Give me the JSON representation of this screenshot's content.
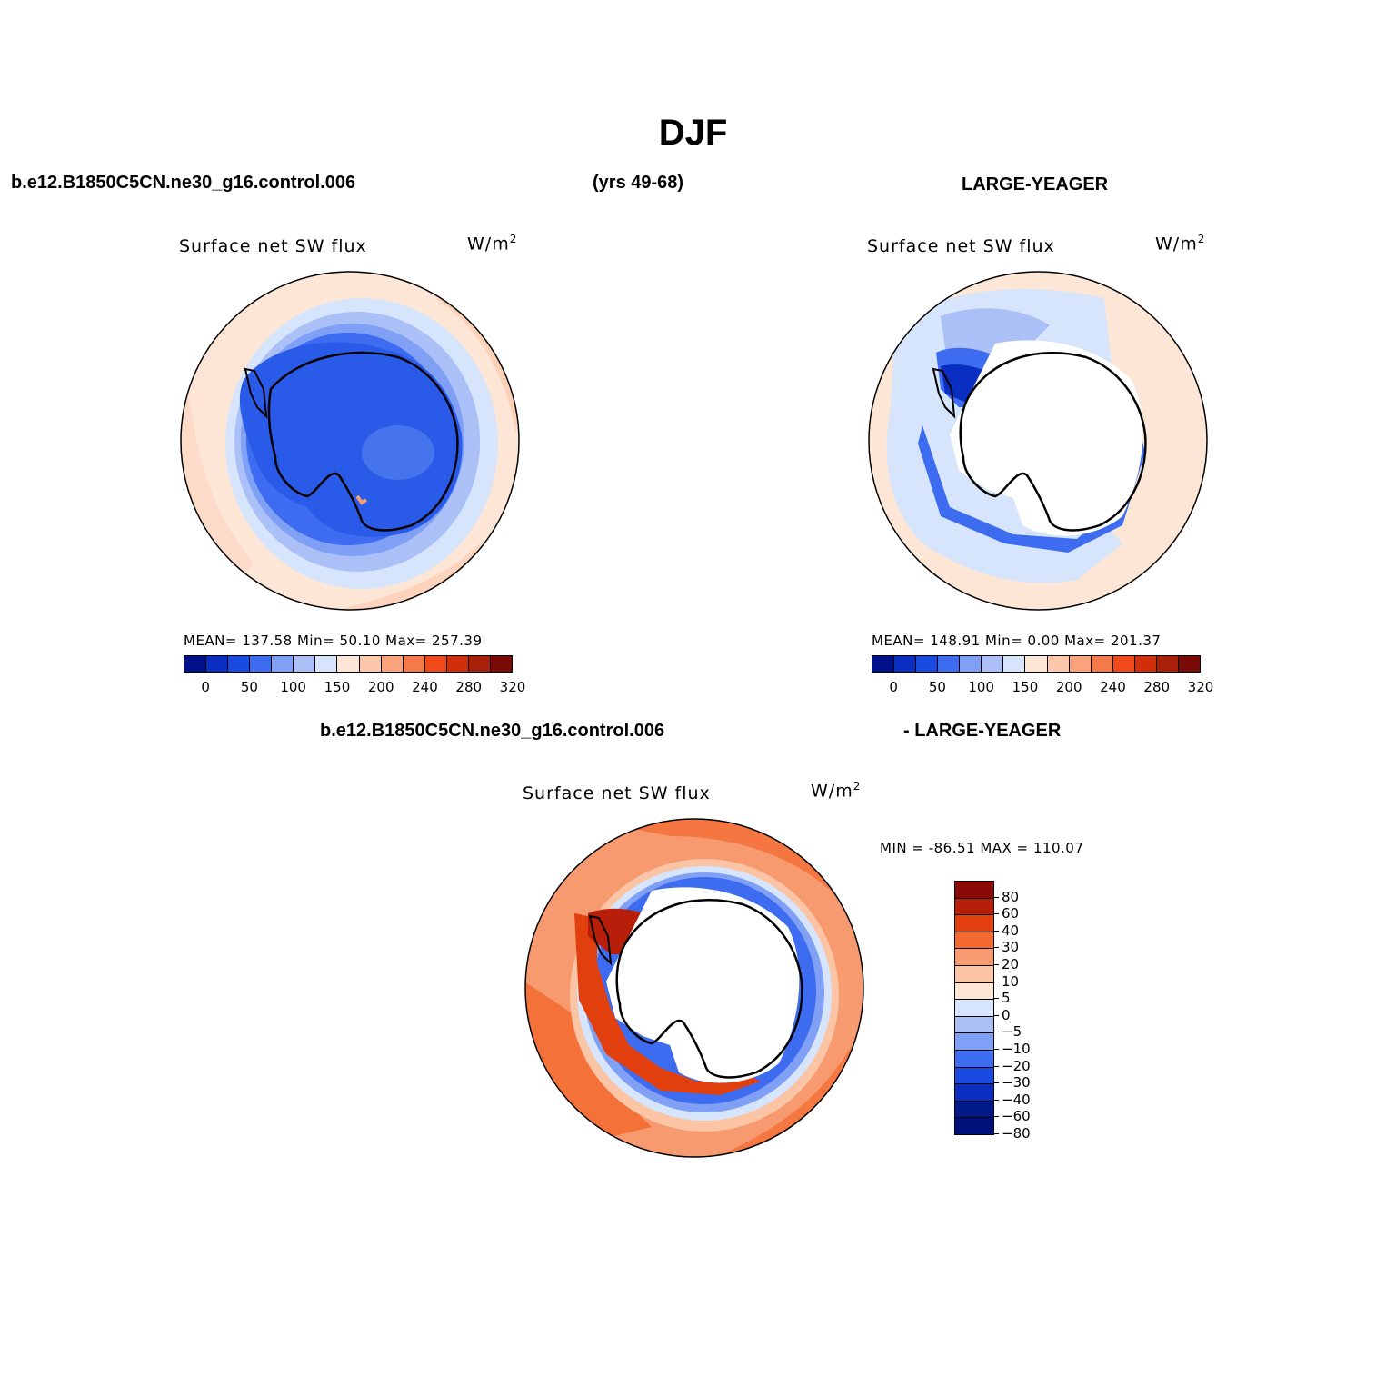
{
  "page": {
    "title": "DJF",
    "case_label": "b.e12.B1850C5CN.ne30_g16.control.006",
    "years_label": "(yrs 49-68)",
    "obs_label": "LARGE-YEAGER",
    "diff_case_label": "b.e12.B1850C5CN.ne30_g16.control.006",
    "diff_obs_label": "- LARGE-YEAGER"
  },
  "panels": {
    "model": {
      "title": "Surface net SW flux",
      "units": "W/m",
      "units_sup": "2",
      "stats": "MEAN= 137.58   Min=   50.10   Max= 257.39"
    },
    "obs": {
      "title": "Surface net SW flux",
      "units": "W/m",
      "units_sup": "2",
      "stats": "MEAN= 148.91   Min=    0.00   Max= 201.37"
    },
    "diff": {
      "title": "Surface net SW flux",
      "units": "W/m",
      "units_sup": "2",
      "stats": "MIN = -86.51  MAX = 110.07"
    }
  },
  "colorbar_abs": {
    "colors": [
      "#00108a",
      "#0a2dc2",
      "#1a4be0",
      "#3e6cf0",
      "#7fa0f5",
      "#aac0f7",
      "#d6e5fb",
      "#fde6d6",
      "#fcc7aa",
      "#f8a37c",
      "#f57a4a",
      "#f04a1a",
      "#d12e0c",
      "#a8200a",
      "#7a0a06"
    ],
    "labels": [
      "0",
      "50",
      "100",
      "150",
      "200",
      "240",
      "280",
      "320"
    ]
  },
  "colorbar_diff": {
    "colors": [
      "#8a0a06",
      "#b81f0a",
      "#e1400e",
      "#f46a30",
      "#f89a70",
      "#fbc4a4",
      "#fde6d6",
      "#d6e5fb",
      "#aac0f7",
      "#7fa0f5",
      "#3e6cf0",
      "#1a4be0",
      "#0a2dc2",
      "#001888",
      "#00107a"
    ],
    "labels": [
      "80",
      "60",
      "40",
      "30",
      "20",
      "10",
      "5",
      "0",
      "−5",
      "−10",
      "−20",
      "−30",
      "−40",
      "−60",
      "−80"
    ]
  }
}
